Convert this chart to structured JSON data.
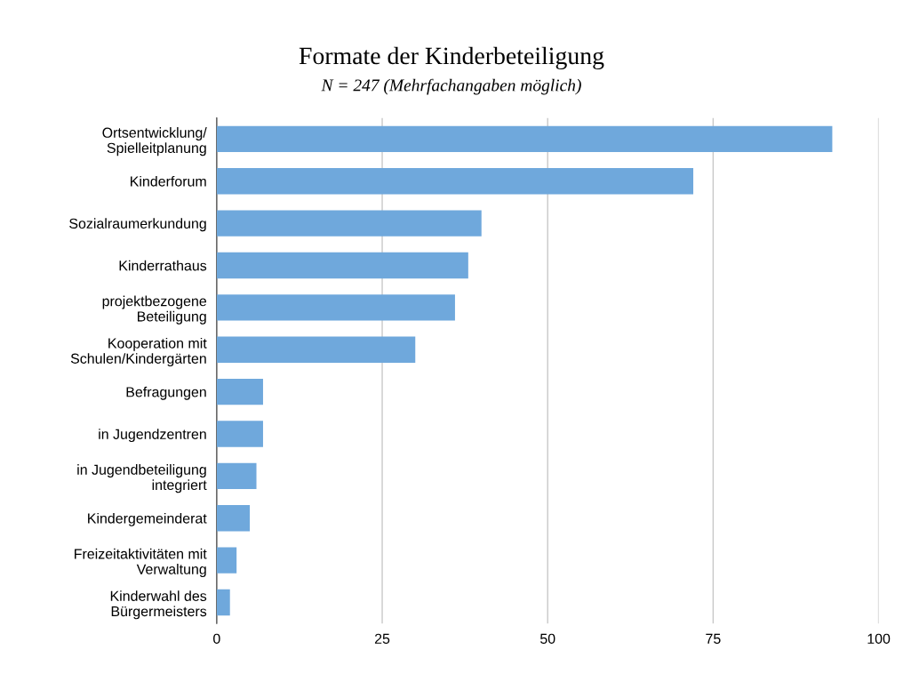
{
  "chart_data": {
    "type": "bar",
    "orientation": "horizontal",
    "title": "Formate der Kinderbeteiligung",
    "subtitle": "N = 247 (Mehrfachangaben möglich)",
    "categories": [
      "Ortsentwicklung/\nSpielleitplanung",
      "Kinderforum",
      "Sozialraumerkundung",
      "Kinderrathaus",
      "projektbezogene\nBeteiligung",
      "Kooperation mit\nSchulen/Kindergärten",
      "Befragungen",
      "in Jugendzentren",
      "in Jugendbeteiligung\nintegriert",
      "Kindergemeinderat",
      "Freizeitaktivitäten mit\nVerwaltung",
      "Kinderwahl des\nBürgermeisters"
    ],
    "values": [
      93,
      72,
      40,
      38,
      36,
      30,
      7,
      7,
      6,
      5,
      3,
      2
    ],
    "color": "#6fa8dc",
    "xlim": [
      0,
      100
    ],
    "xticks": [
      0,
      25,
      50,
      75,
      100
    ],
    "grid": "x",
    "legend": false
  }
}
